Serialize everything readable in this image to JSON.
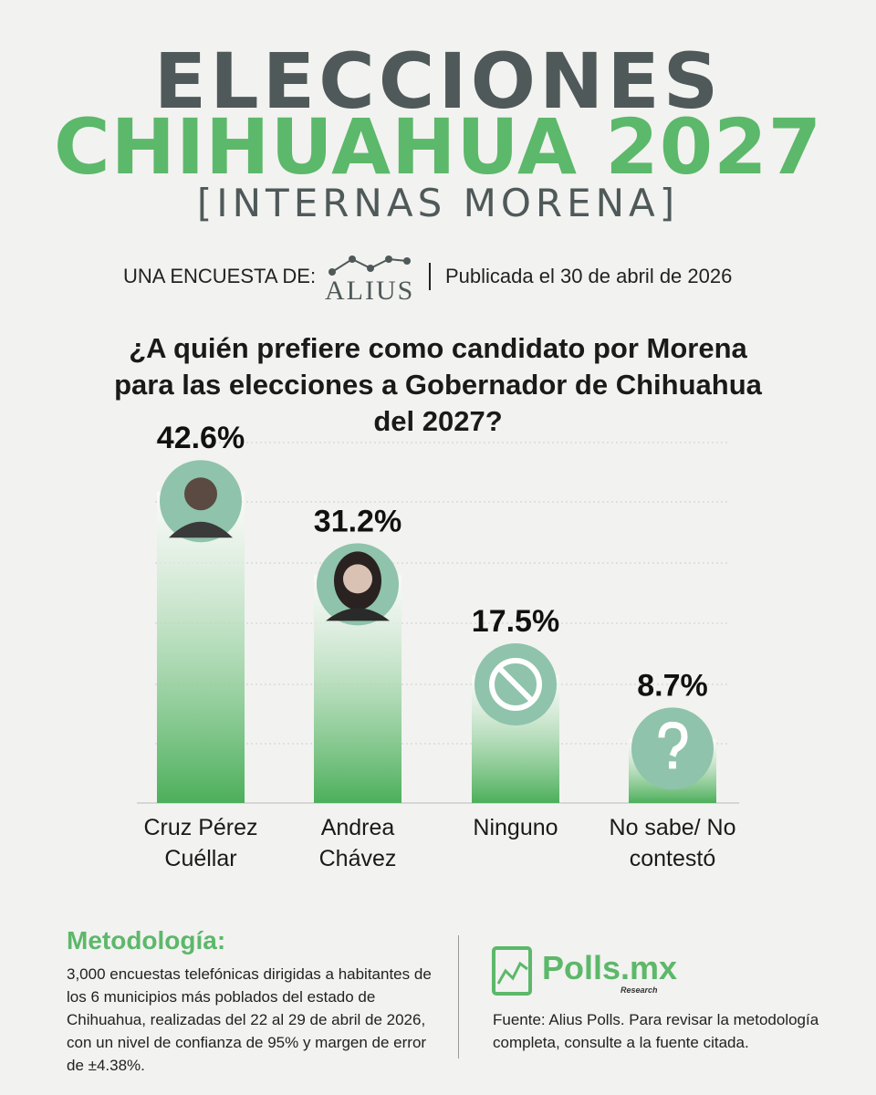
{
  "header": {
    "title_line1": "ELECCIONES",
    "title_line2": "CHIHUAHUA 2027",
    "subtitle": "[INTERNAS MORENA]",
    "survey_label": "UNA ENCUESTA DE:",
    "pollster": "ALIUS",
    "published": "Publicada el 30 de abril de 2026"
  },
  "chart_data": {
    "type": "bar",
    "title": "¿A quién prefiere como candidato por Morena para las elecciones a Gobernador de Chihuahua del 2027?",
    "categories": [
      "Cruz Pérez Cuéllar",
      "Andrea Chávez",
      "Ninguno",
      "No sabe/ No contestó"
    ],
    "values": [
      42.6,
      31.2,
      17.5,
      8.7
    ],
    "value_labels": [
      "42.6%",
      "31.2%",
      "17.5%",
      "8.7%"
    ],
    "color": "#4caf5a"
  },
  "methodology": {
    "heading": "Metodología:",
    "text": "3,000 encuestas telefónicas dirigidas a habitantes de los 6 municipios más poblados del estado de Chihuahua, realizadas del 22 al 29 de abril de 2026, con un nivel de confianza de 95% y margen de error de ±4.38%."
  },
  "footer": {
    "brand": "Polls.mx",
    "brand_tag": "Research",
    "source": "Fuente: Alius Polls. Para revisar la metodología completa, consulte a la fuente citada."
  }
}
